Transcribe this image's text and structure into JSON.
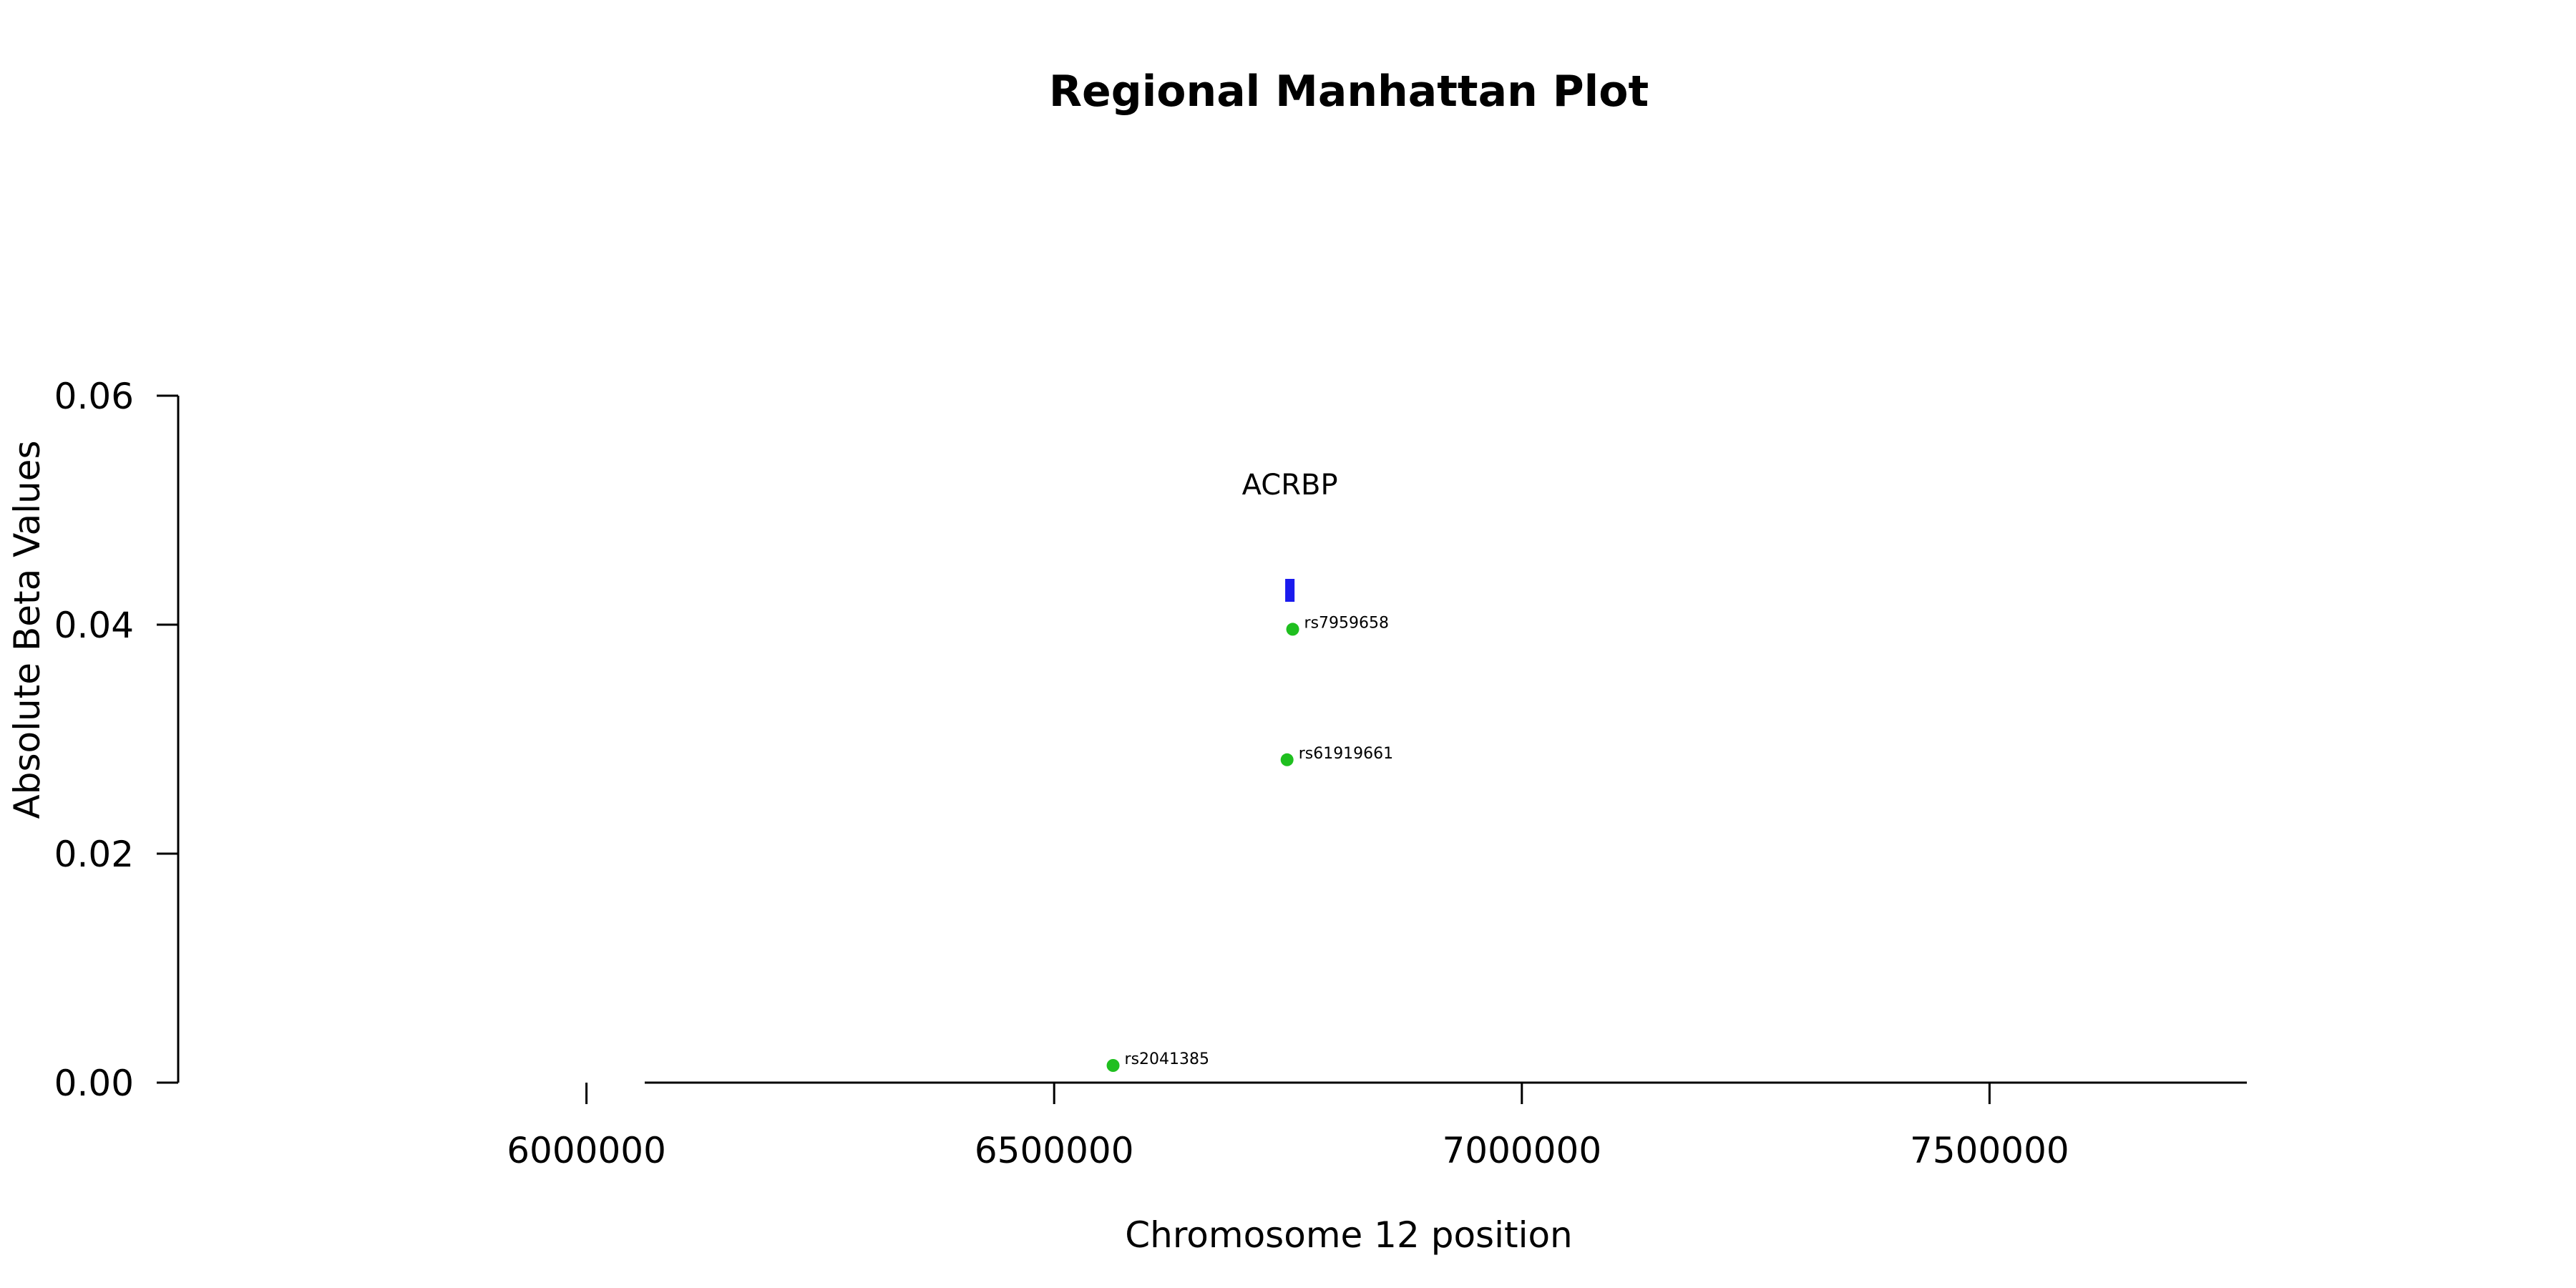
{
  "chart_data": {
    "type": "scatter",
    "title": "Regional Manhattan Plot",
    "xlabel": "Chromosome 12 position",
    "ylabel": "Absolute Beta Values",
    "xlim": [
      5563500,
      7936500
    ],
    "ylim": [
      0,
      0.06
    ],
    "xticks": [
      6000000,
      6500000,
      7000000,
      7500000
    ],
    "xtick_labels": [
      "6000000",
      "6500000",
      "7000000",
      "7500000"
    ],
    "yticks": [
      0,
      0.02,
      0.04,
      0.06
    ],
    "ytick_labels": [
      "0.00",
      "0.02",
      "0.04",
      "0.06"
    ],
    "grid": false,
    "points": [
      {
        "label": "rs2041385",
        "x": 6563000,
        "y": 0.0015
      },
      {
        "label": "rs61919661",
        "x": 6749000,
        "y": 0.0282
      },
      {
        "label": "rs7959658",
        "x": 6755000,
        "y": 0.0396
      }
    ],
    "genes": [
      {
        "name": "ACRBP",
        "start": 6747000,
        "end": 6757000,
        "y_low": 0.042,
        "y_high": 0.044
      }
    ],
    "colors": {
      "points": "#1fbf1f",
      "genes": "#1a1aee",
      "axis": "#000000"
    }
  }
}
